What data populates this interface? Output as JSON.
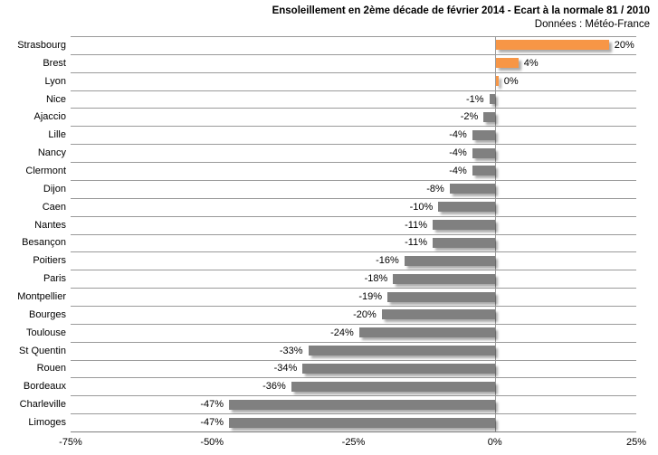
{
  "chart_data": {
    "type": "bar",
    "orientation": "horizontal",
    "title": "Ensoleillement en 2ème décade de février 2014 - Ecart à la normale 81 / 2010",
    "subtitle": "Données : Météo-France",
    "categories": [
      "Strasbourg",
      "Brest",
      "Lyon",
      "Nice",
      "Ajaccio",
      "Lille",
      "Nancy",
      "Clermont",
      "Dijon",
      "Caen",
      "Nantes",
      "Besançon",
      "Poitiers",
      "Paris",
      "Montpellier",
      "Bourges",
      "Toulouse",
      "St Quentin",
      "Rouen",
      "Bordeaux",
      "Charleville",
      "Limoges"
    ],
    "values": [
      20,
      4,
      0,
      -1,
      -2,
      -4,
      -4,
      -4,
      -8,
      -10,
      -11,
      -11,
      -16,
      -18,
      -19,
      -20,
      -24,
      -33,
      -34,
      -36,
      -47,
      -47
    ],
    "value_labels": [
      "20%",
      "4%",
      "0%",
      "-1%",
      "-2%",
      "-4%",
      "-4%",
      "-4%",
      "-8%",
      "-10%",
      "-11%",
      "-11%",
      "-16%",
      "-18%",
      "-19%",
      "-20%",
      "-24%",
      "-33%",
      "-34%",
      "-36%",
      "-47%",
      "-47%"
    ],
    "xlabel": "",
    "ylabel": "",
    "xlim": [
      -75,
      25
    ],
    "x_ticks": [
      "-75%",
      "-50%",
      "-25%",
      "0%",
      "25%"
    ],
    "x_tick_values": [
      -75,
      -50,
      -25,
      0,
      25
    ],
    "grid": "horizontal",
    "legend_position": "none",
    "colors": {
      "positive_bar": "#f79646",
      "negative_bar": "#808080",
      "gridline": "#9a9a9a",
      "axis_line": "#7f7f7f",
      "text": "#000000",
      "background": "#ffffff"
    }
  }
}
